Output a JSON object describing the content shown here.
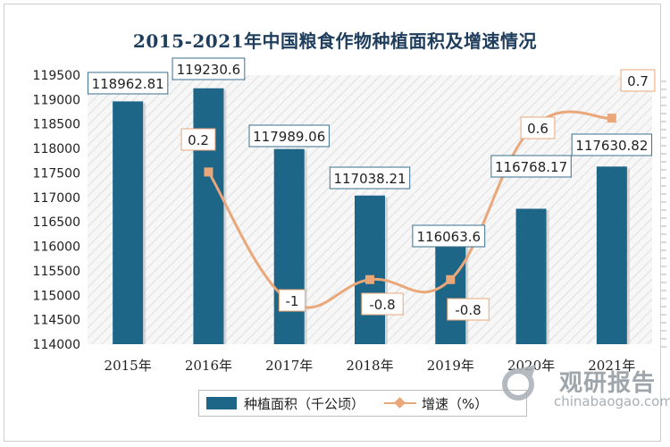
{
  "chart_data": {
    "type": "bar",
    "title": "2015-2021年中国粮食作物种植面积及增速情况",
    "categories": [
      "2015年",
      "2016年",
      "2017年",
      "2018年",
      "2019年",
      "2020年",
      "2021年"
    ],
    "series": [
      {
        "name": "种植面积（千公顷）",
        "type": "bar",
        "axis": "left",
        "values": [
          118962.81,
          119230.6,
          117989.06,
          117038.21,
          116063.6,
          116768.17,
          117630.82
        ],
        "labels": [
          "118962.81",
          "119230.6",
          "117989.06",
          "117038.21",
          "116063.6",
          "116768.17",
          "117630.82"
        ],
        "color": "#1d6688"
      },
      {
        "name": "增速（%）",
        "type": "line",
        "axis": "right",
        "values": [
          null,
          0.2,
          -1,
          -0.8,
          -0.8,
          0.6,
          0.7
        ],
        "labels": [
          "",
          "0.2",
          "-1",
          "-0.8",
          "-0.8",
          "0.6",
          "0.7"
        ],
        "color": "#e9a77a"
      }
    ],
    "ylim": [
      114000,
      119500
    ],
    "yticks": [
      114000,
      114500,
      115000,
      115500,
      116000,
      116500,
      117000,
      117500,
      118000,
      118500,
      119000,
      119500
    ],
    "y2lim": [
      -1.4,
      1.1
    ],
    "grid": false,
    "legend_position": "bottom"
  },
  "legend": {
    "bar_label": "种植面积（千公顷）",
    "line_label": "增速（%）"
  },
  "watermark": {
    "brand": "观研报告",
    "domain": "chinabaogao.com"
  },
  "colors": {
    "bar": "#1d6688",
    "line": "#e9a77a",
    "title": "#1f3d5c"
  }
}
